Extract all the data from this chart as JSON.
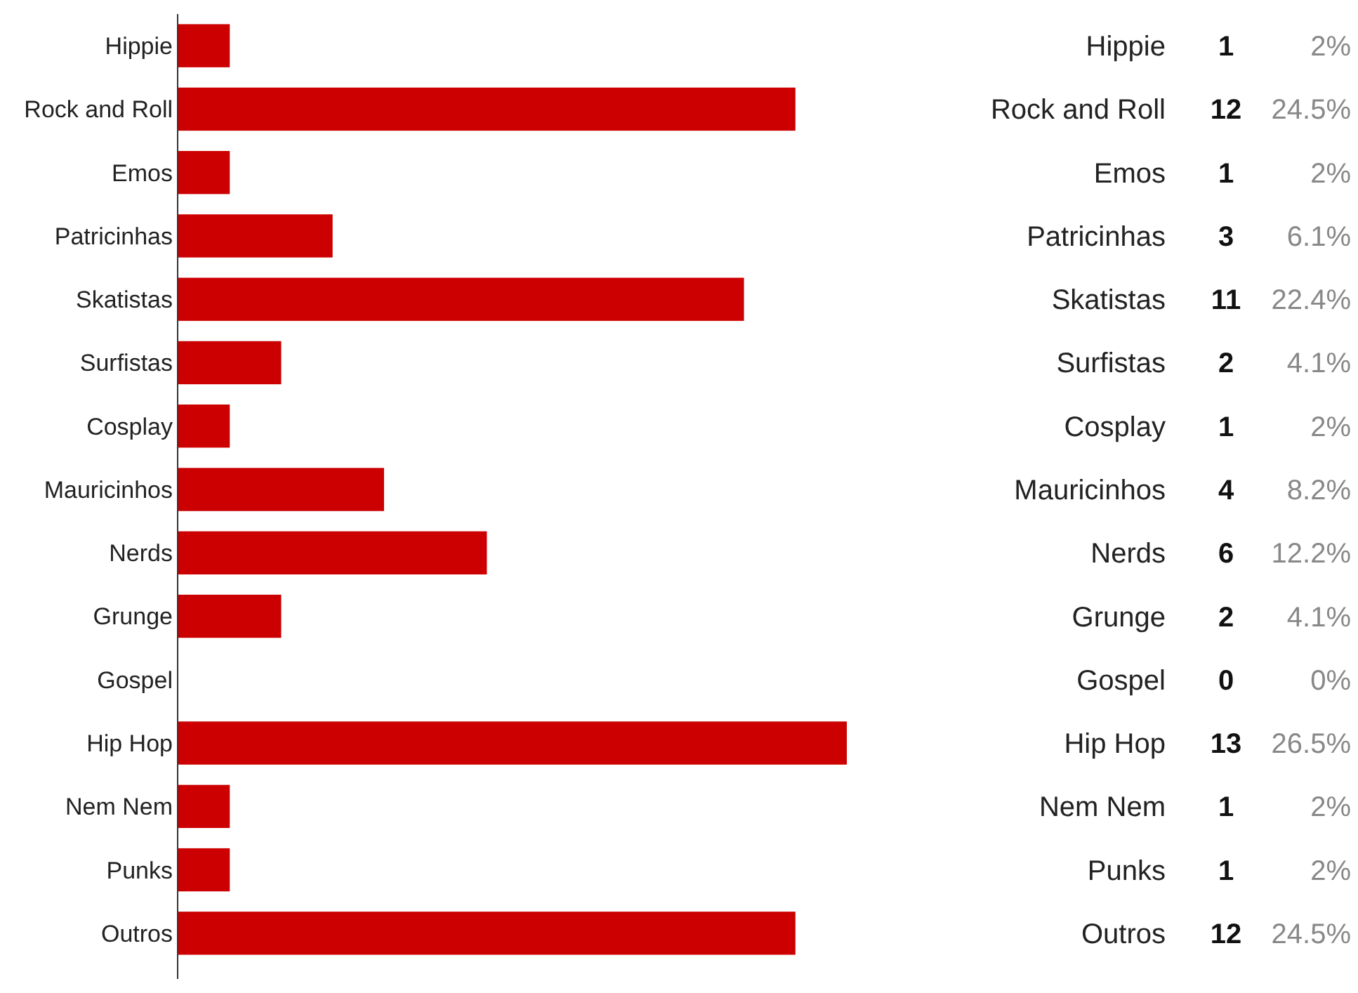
{
  "chart_data": {
    "type": "bar",
    "orientation": "horizontal",
    "categories": [
      "Hippie",
      "Rock and Roll",
      "Emos",
      "Patricinhas",
      "Skatistas",
      "Surfistas",
      "Cosplay",
      "Mauricinhos",
      "Nerds",
      "Grunge",
      "Gospel",
      "Hip Hop",
      "Nem Nem",
      "Punks",
      "Outros"
    ],
    "values": [
      1,
      12,
      1,
      3,
      11,
      2,
      1,
      4,
      6,
      2,
      0,
      13,
      1,
      1,
      12
    ],
    "color": "#cc0000",
    "data_labels": true,
    "annotations": [
      "2%",
      "24.5%",
      "2%",
      "6.1%",
      "22.4%",
      "4.1%",
      "2%",
      "8.2%",
      "12.2%",
      "4.1%",
      "0%",
      "26.5%",
      "2%",
      "2%",
      "24.5%"
    ]
  }
}
